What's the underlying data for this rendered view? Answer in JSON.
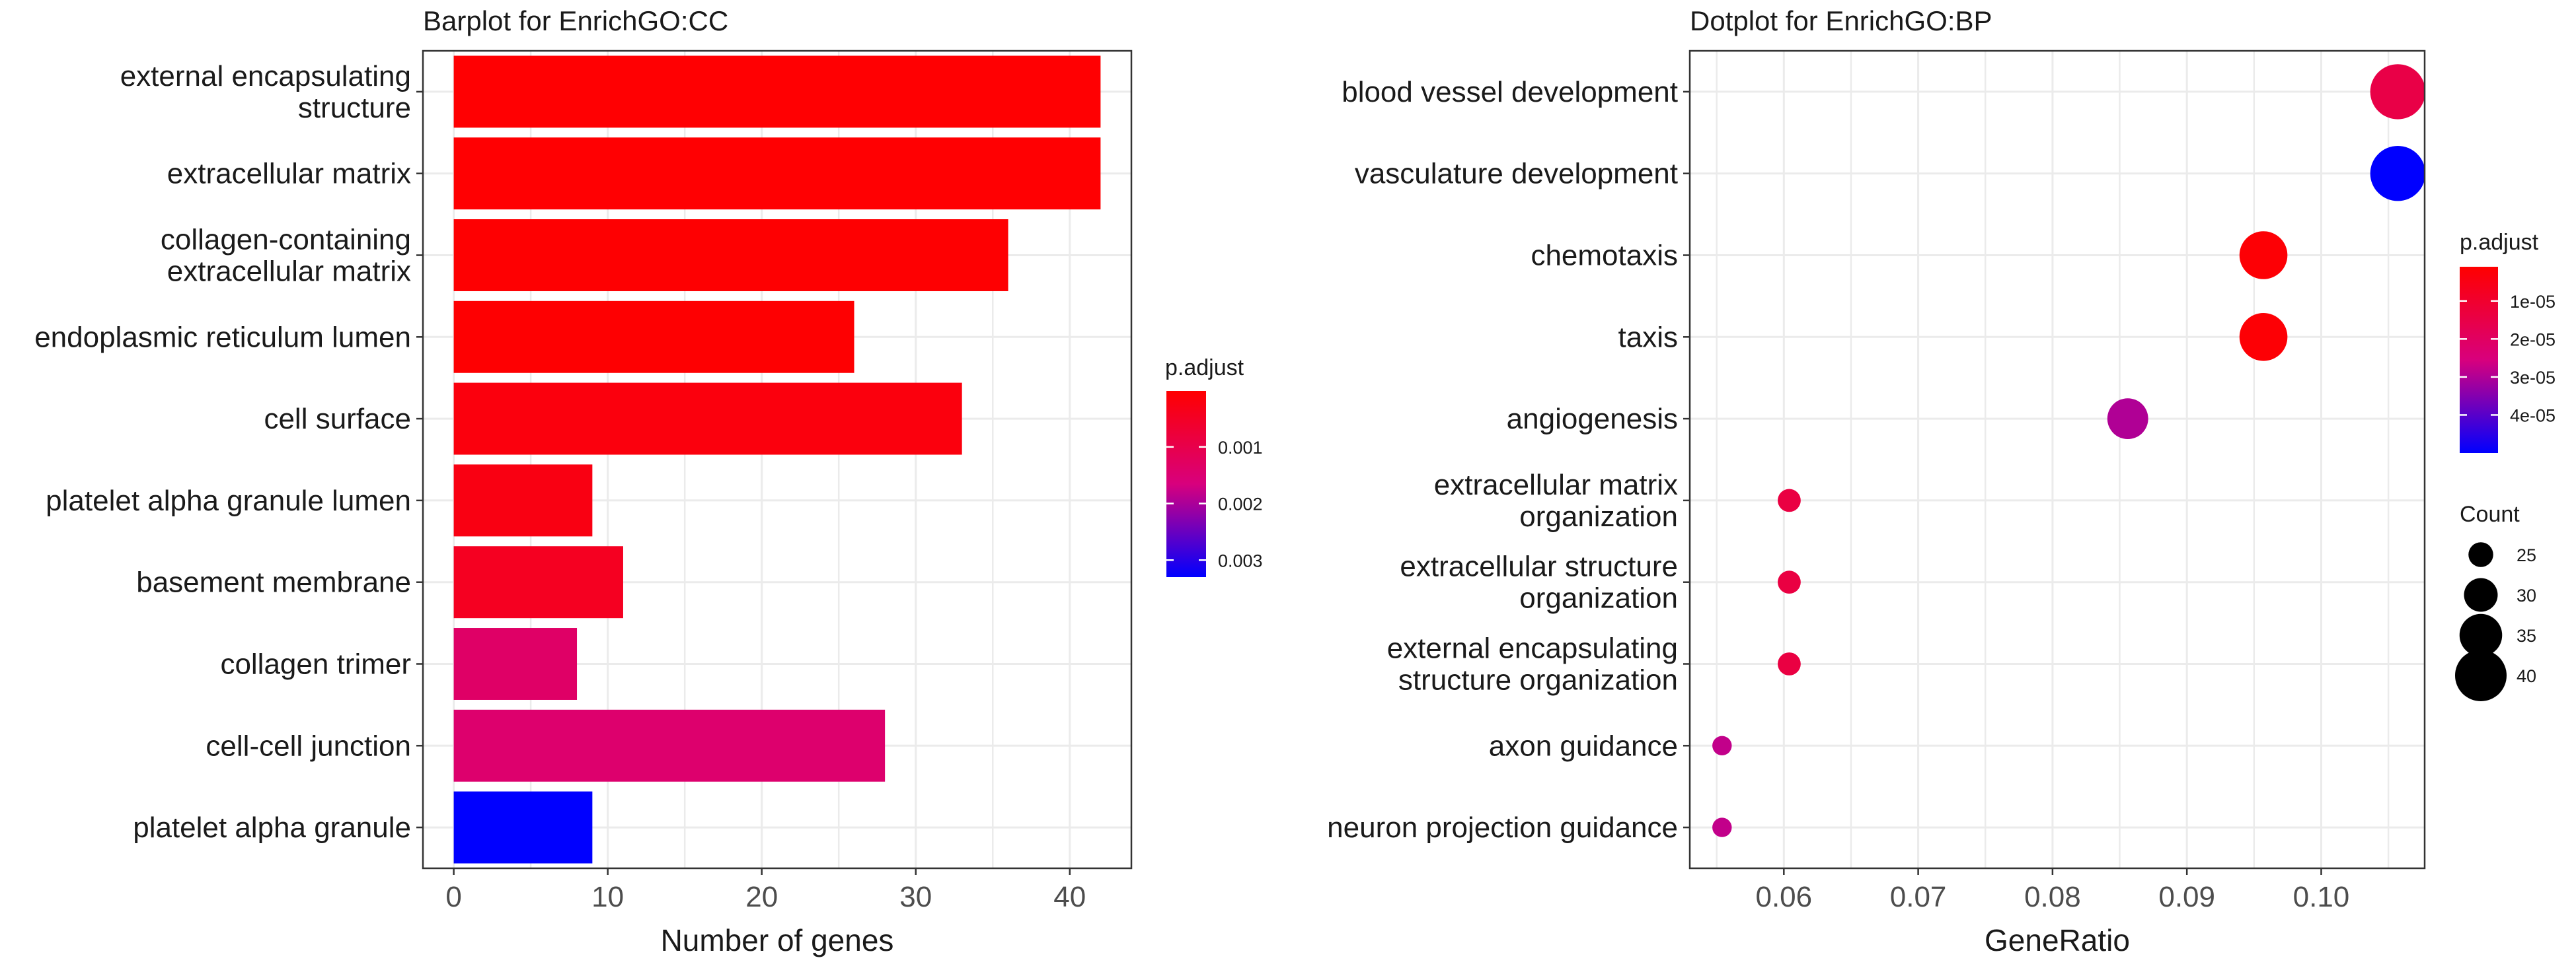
{
  "chart_data": [
    {
      "type": "bar",
      "title": "Barplot for EnrichGO:CC",
      "xlabel": "Number of genes",
      "ylabel": "",
      "orientation": "horizontal",
      "categories": [
        "external encapsulating\nstructure",
        "extracellular matrix",
        "collagen-containing\nextracellular matrix",
        "endoplasmic reticulum lumen",
        "cell surface",
        "platelet alpha granule lumen",
        "basement membrane",
        "collagen trimer",
        "cell-cell junction",
        "platelet alpha granule"
      ],
      "values": [
        42,
        42,
        36,
        26,
        33,
        9,
        11,
        8,
        28,
        9
      ],
      "p_adjust": [
        3e-05,
        3e-05,
        4e-05,
        4e-05,
        0.00018,
        0.00025,
        0.00045,
        0.00135,
        0.00145,
        0.0033
      ],
      "xlim": [
        -2,
        44
      ],
      "xticks": [
        0,
        10,
        20,
        30,
        40
      ],
      "grid": true,
      "legend": {
        "title": "p.adjust",
        "placement": "right",
        "range": [
          1e-05,
          0.0033
        ],
        "ticks": [
          0.001,
          0.002,
          0.003
        ],
        "tick_labels": [
          "0.001",
          "0.002",
          "0.003"
        ],
        "color_low": "#ff0000",
        "color_high": "#0000ff"
      }
    },
    {
      "type": "scatter",
      "title": "Dotplot for EnrichGO:BP",
      "xlabel": "GeneRatio",
      "ylabel": "",
      "categories": [
        "blood vessel development",
        "vasculature development",
        "chemotaxis",
        "taxis",
        "angiogenesis",
        "extracellular matrix\norganization",
        "extracellular structure\norganization",
        "external encapsulating\nstructure organization",
        "axon guidance",
        "neuron projection guidance"
      ],
      "x": [
        0.1057,
        0.1057,
        0.0957,
        0.0957,
        0.0856,
        0.0604,
        0.0604,
        0.0604,
        0.0554,
        0.0554
      ],
      "count": [
        42,
        42,
        38,
        38,
        34,
        24,
        24,
        24,
        22,
        22
      ],
      "p_adjust": [
        1.5e-05,
        5e-05,
        2e-06,
        2e-06,
        3e-05,
        1.4e-05,
        1.4e-05,
        1.4e-05,
        2.8e-05,
        2.8e-05
      ],
      "xlim": [
        0.053,
        0.1077
      ],
      "xticks": [
        0.06,
        0.07,
        0.08,
        0.09,
        0.1
      ],
      "xtick_labels": [
        "0.06",
        "0.07",
        "0.08",
        "0.09",
        "0.10"
      ],
      "grid": true,
      "legend_color": {
        "title": "p.adjust",
        "placement": "right",
        "range": [
          1e-06,
          5e-05
        ],
        "ticks": [
          1e-05,
          2e-05,
          3e-05,
          4e-05
        ],
        "tick_labels": [
          "1e-05",
          "2e-05",
          "3e-05",
          "4e-05"
        ],
        "color_low": "#ff0000",
        "color_high": "#0000ff"
      },
      "legend_size": {
        "title": "Count",
        "values": [
          25,
          30,
          35,
          40
        ],
        "labels": [
          "25",
          "30",
          "35",
          "40"
        ]
      }
    }
  ]
}
